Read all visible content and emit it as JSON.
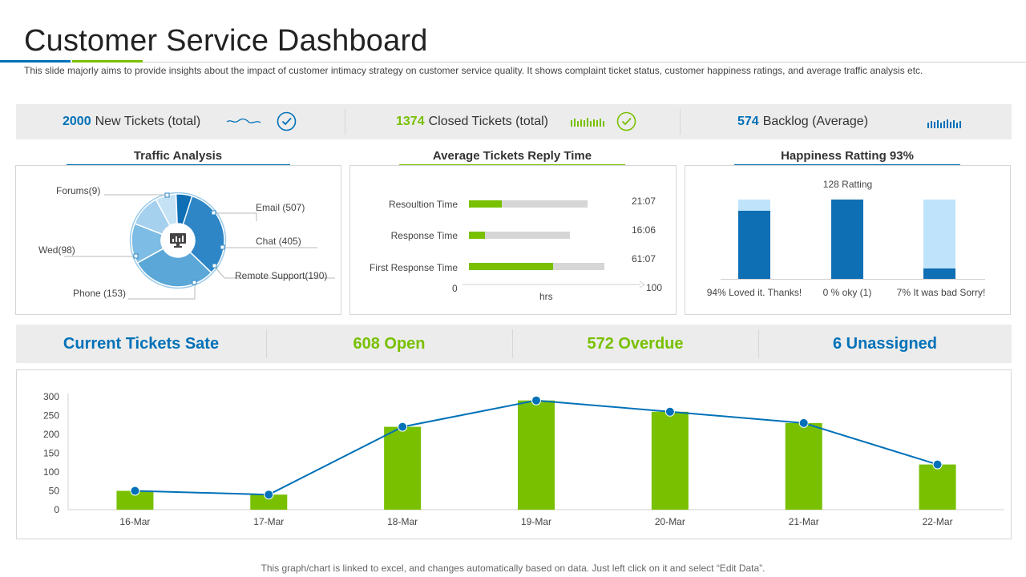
{
  "header": {
    "title": "Customer Service Dashboard",
    "subtitle": "This slide majorly aims to provide  insights about the impact of customer intimacy strategy  on customer service  quality. It shows complaint ticket status, customer happiness ratings, and average  traffic  analysis etc."
  },
  "kpis": {
    "new_tickets": {
      "value": "2000",
      "label": "New Tickets (total)"
    },
    "closed_tickets": {
      "value": "1374",
      "label": "Closed Tickets (total)"
    },
    "backlog": {
      "value": "574",
      "label": "Backlog  (Average)"
    }
  },
  "traffic": {
    "title": "Traffic Analysis",
    "labels": {
      "forums": "Forums(9)",
      "email": "Email (507)",
      "chat": "Chat (405)",
      "wed": "Wed(98)",
      "remote": "Remote Support(190)",
      "phone": "Phone (153)"
    },
    "slices": [
      {
        "name": "Email",
        "value": 507,
        "color": "#2e86c6"
      },
      {
        "name": "Chat",
        "value": 405,
        "color": "#5aa7d8"
      },
      {
        "name": "Remote Support",
        "value": 190,
        "color": "#7dbce4"
      },
      {
        "name": "Phone",
        "value": 153,
        "color": "#a5d0ee"
      },
      {
        "name": "Wed",
        "value": 98,
        "color": "#c5e2f5"
      },
      {
        "name": "Forums",
        "value": 9,
        "color": "#0f6fb5"
      }
    ]
  },
  "reply_time": {
    "title": "Average Tickets Reply Time",
    "rows": [
      {
        "label": "Resoultion Time",
        "time": "21:07",
        "fill": 0.28
      },
      {
        "label": "Response  Time",
        "time": "16:06",
        "fill": 0.16
      },
      {
        "label": "First Response Time",
        "time": "61:07",
        "fill": 0.62
      }
    ],
    "axis_min": "0",
    "axis_max": "100",
    "axis_label": "hrs"
  },
  "happiness": {
    "title": "Happiness Ratting 93%",
    "rating_label": "128 Ratting",
    "bars": [
      {
        "label": "94% Loved it. Thanks!",
        "fill": 0.86
      },
      {
        "label": "0 % oky (1)",
        "fill": 1.0
      },
      {
        "label": "7% It was bad Sorry!",
        "fill": 0.13
      }
    ]
  },
  "ticket_state": {
    "label": "Current Tickets Sate",
    "open": "608 Open",
    "overdue": "572 Overdue",
    "unassigned": "6 Unassigned"
  },
  "chart_data": {
    "type": "bar",
    "categories": [
      "16-Mar",
      "17-Mar",
      "18-Mar",
      "19-Mar",
      "20-Mar",
      "21-Mar",
      "22-Mar"
    ],
    "series": [
      {
        "type": "bar",
        "values": [
          50,
          40,
          220,
          290,
          260,
          230,
          120
        ],
        "color": "#78c000"
      },
      {
        "type": "line",
        "values": [
          50,
          40,
          220,
          290,
          260,
          230,
          120
        ],
        "color": "#0071b8"
      }
    ],
    "yticks": [
      "300",
      "250",
      "200",
      "150",
      "100",
      "50",
      "0"
    ],
    "ylim": [
      0,
      300
    ]
  },
  "colors": {
    "blue": "#0071b8",
    "green": "#78c000",
    "dark_blue": "#0f6fb5",
    "light_blue": "#bfe3fa"
  },
  "footer": {
    "note": "This graph/chart is linked to excel, and changes automatically based on data. Just left click on it and select “Edit Data”."
  }
}
